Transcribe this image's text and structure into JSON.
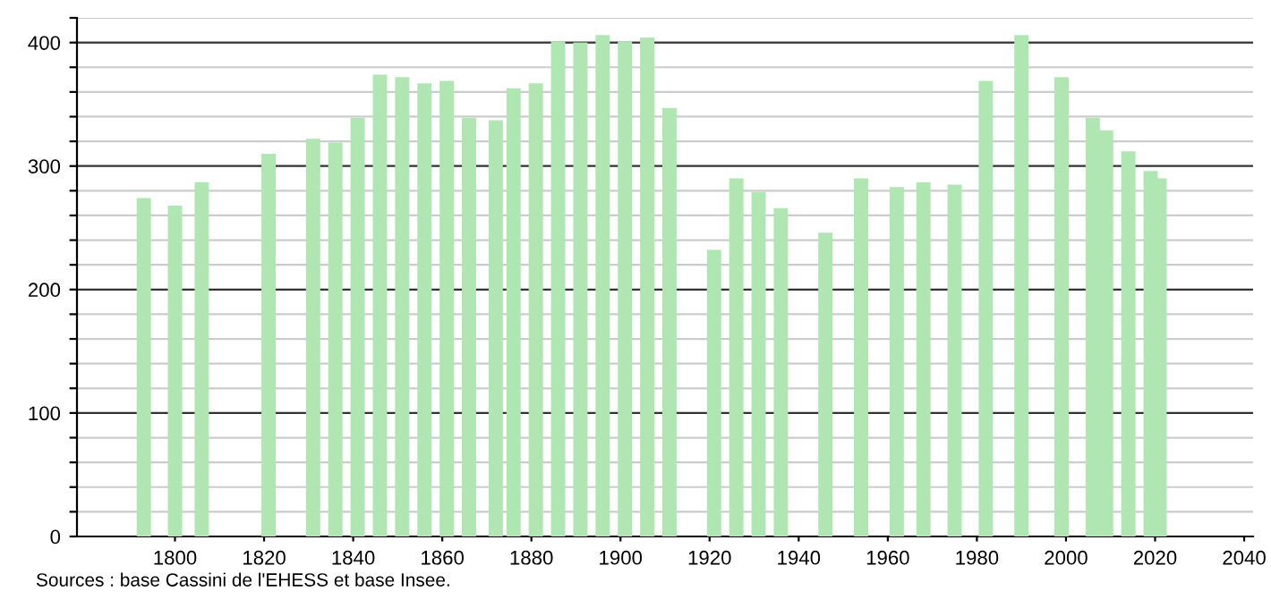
{
  "chart_data": {
    "type": "bar",
    "x": [
      1793,
      1800,
      1806,
      1821,
      1831,
      1836,
      1841,
      1846,
      1851,
      1856,
      1861,
      1866,
      1872,
      1876,
      1881,
      1886,
      1891,
      1896,
      1901,
      1906,
      1911,
      1921,
      1926,
      1931,
      1936,
      1946,
      1954,
      1962,
      1968,
      1975,
      1982,
      1990,
      1999,
      2006,
      2009,
      2014,
      2019,
      2021
    ],
    "values": [
      274,
      268,
      287,
      310,
      322,
      319,
      339,
      374,
      372,
      367,
      369,
      339,
      337,
      363,
      367,
      401,
      400,
      406,
      401,
      404,
      347,
      232,
      290,
      279,
      266,
      246,
      290,
      283,
      287,
      285,
      369,
      406,
      372,
      339,
      329,
      312,
      296,
      290
    ],
    "color": "#b0e6b2",
    "xlim": [
      1778,
      2042
    ],
    "xticks": [
      1800,
      1820,
      1840,
      1860,
      1880,
      1900,
      1920,
      1940,
      1960,
      1980,
      2000,
      2020,
      2040
    ],
    "ylim": [
      0,
      420
    ],
    "yticks": [
      0,
      {
        "value": 20,
        "label": null
      },
      {
        "value": 40,
        "label": null
      },
      {
        "value": 60,
        "label": null
      },
      {
        "value": 80,
        "label": null
      },
      100,
      {
        "value": 120,
        "label": null
      },
      {
        "value": 140,
        "label": null
      },
      {
        "value": 160,
        "label": null
      },
      {
        "value": 180,
        "label": null
      },
      200,
      {
        "value": 220,
        "label": null
      },
      {
        "value": 240,
        "label": null
      },
      {
        "value": 260,
        "label": null
      },
      {
        "value": 280,
        "label": null
      },
      300,
      {
        "value": 320,
        "label": null
      },
      {
        "value": 340,
        "label": null
      },
      {
        "value": 360,
        "label": null
      },
      {
        "value": 380,
        "label": null
      },
      400,
      {
        "value": 420,
        "label": null
      }
    ],
    "grid": "y",
    "annotations": [
      "Sources : base Cassini de l'EHESS et base Insee."
    ]
  }
}
